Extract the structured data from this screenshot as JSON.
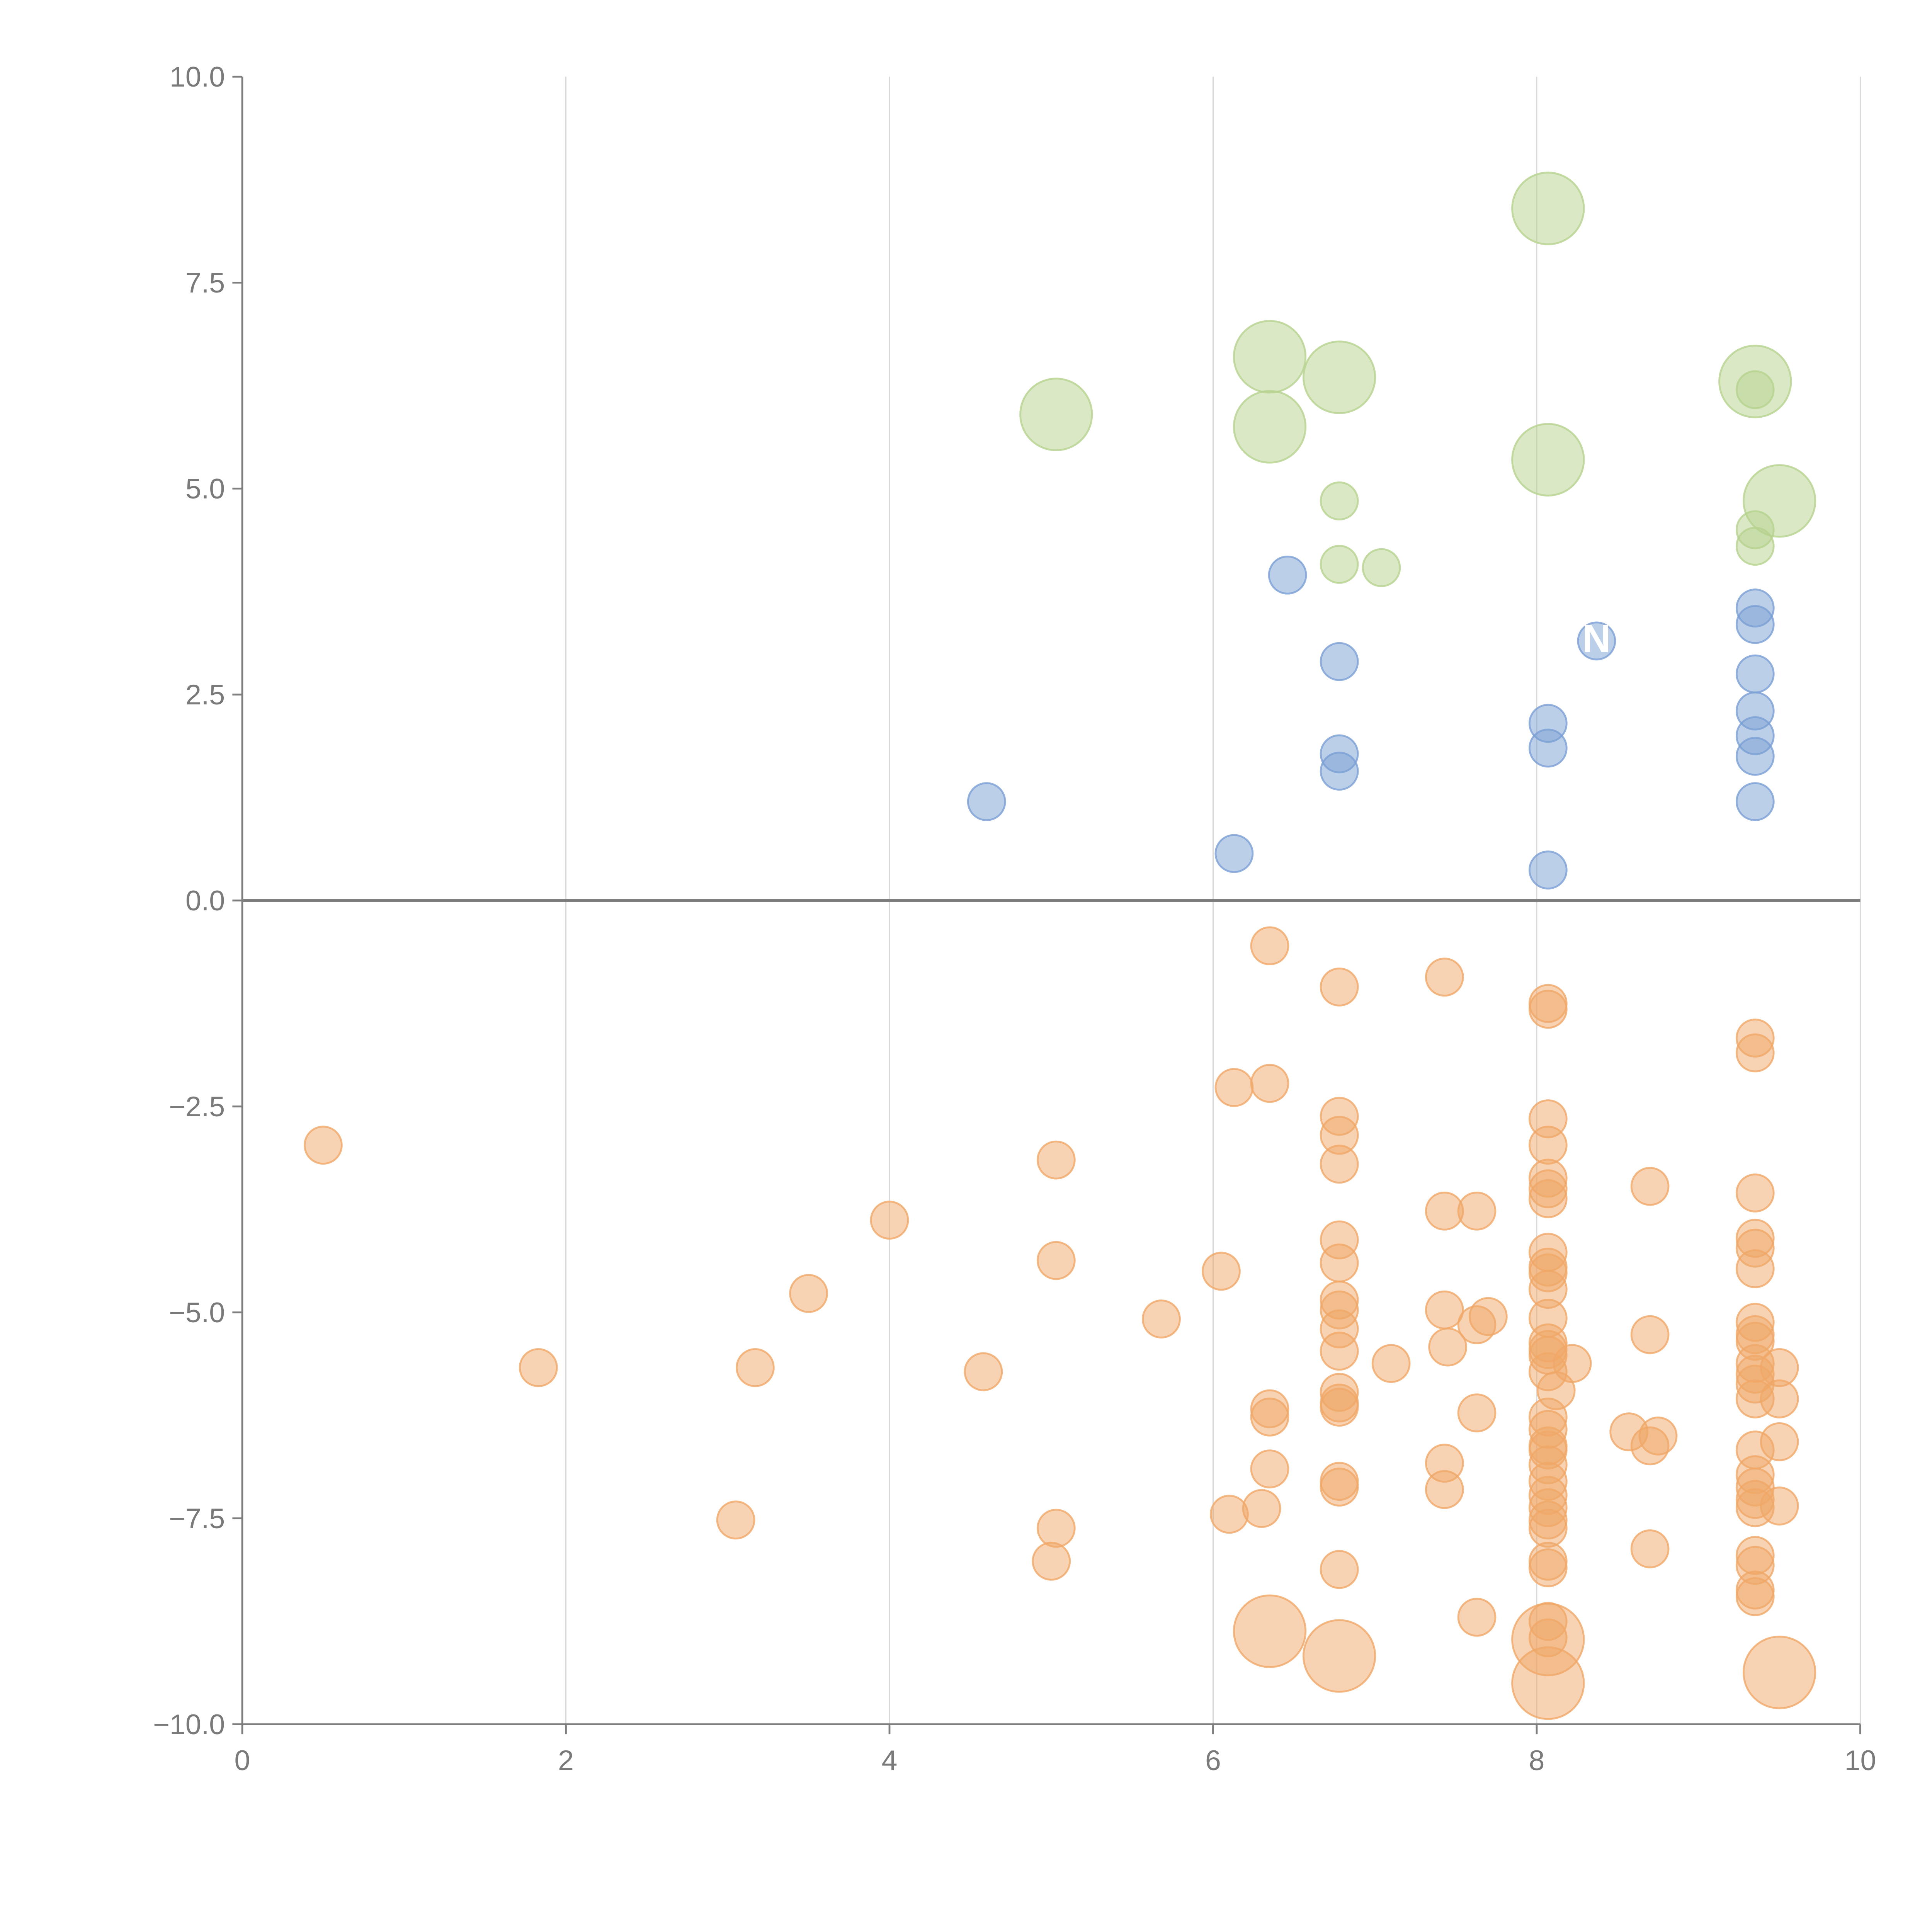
{
  "colors": {
    "background": "#ffffff",
    "grid": "#d9d9d9",
    "axis": "#7f7f7f",
    "zero_line": "#7f7f7f",
    "tick_text": "#7a7a7a",
    "negative": "#F0A868",
    "positive": "#7A9FD4",
    "high": "#B6D28E"
  },
  "chart_data": {
    "type": "scatter",
    "title": "",
    "xlabel": "",
    "ylabel": "",
    "xlim": [
      0,
      10
    ],
    "ylim": [
      -10,
      10
    ],
    "grid": "vertical",
    "xticks": [
      0,
      2,
      4,
      6,
      8,
      10
    ],
    "xtick_labels": [
      "0",
      "2",
      "4",
      "6",
      "8",
      "10"
    ],
    "yticks": [
      10,
      7.5,
      5,
      2.5,
      0,
      -2.5,
      -5,
      -7.5,
      -10
    ],
    "ytick_labels": [
      "10.0",
      "7.5",
      "5.0",
      "2.5",
      "0.0",
      "−2.5",
      "−5.0",
      "−7.5",
      "−10.0"
    ],
    "zero_line": true,
    "series": [
      {
        "name": "green",
        "color": "#B6D28E",
        "points": [
          {
            "x": 8.07,
            "y": 8.4,
            "size": "large"
          },
          {
            "x": 6.35,
            "y": 6.6,
            "size": "large"
          },
          {
            "x": 6.78,
            "y": 6.35,
            "size": "large"
          },
          {
            "x": 9.35,
            "y": 6.3,
            "size": "large"
          },
          {
            "x": 5.03,
            "y": 5.9,
            "size": "large"
          },
          {
            "x": 6.35,
            "y": 5.75,
            "size": "large"
          },
          {
            "x": 8.07,
            "y": 5.35,
            "size": "large"
          },
          {
            "x": 9.5,
            "y": 4.85,
            "size": "large"
          },
          {
            "x": 9.35,
            "y": 6.2,
            "size": "small"
          },
          {
            "x": 6.78,
            "y": 4.85,
            "size": "small"
          },
          {
            "x": 9.35,
            "y": 4.5,
            "size": "small"
          },
          {
            "x": 9.35,
            "y": 4.3,
            "size": "small"
          },
          {
            "x": 6.78,
            "y": 4.08,
            "size": "small"
          },
          {
            "x": 7.04,
            "y": 4.04,
            "size": "small"
          }
        ]
      },
      {
        "name": "blue",
        "color": "#7A9FD4",
        "points": [
          {
            "x": 6.46,
            "y": 3.95
          },
          {
            "x": 9.35,
            "y": 3.55
          },
          {
            "x": 9.35,
            "y": 3.35
          },
          {
            "x": 8.37,
            "y": 3.15
          },
          {
            "x": 6.78,
            "y": 2.9
          },
          {
            "x": 9.35,
            "y": 2.75
          },
          {
            "x": 9.35,
            "y": 2.3
          },
          {
            "x": 8.07,
            "y": 2.15
          },
          {
            "x": 9.35,
            "y": 2.0
          },
          {
            "x": 8.07,
            "y": 1.85
          },
          {
            "x": 6.78,
            "y": 1.78
          },
          {
            "x": 9.35,
            "y": 1.75
          },
          {
            "x": 6.78,
            "y": 1.57
          },
          {
            "x": 4.6,
            "y": 1.2
          },
          {
            "x": 9.35,
            "y": 1.2
          },
          {
            "x": 6.13,
            "y": 0.57
          },
          {
            "x": 8.07,
            "y": 0.37
          }
        ]
      },
      {
        "name": "orange",
        "color": "#F0A868",
        "points": [
          {
            "x": 0.5,
            "y": -2.97
          },
          {
            "x": 1.83,
            "y": -5.67
          },
          {
            "x": 3.05,
            "y": -7.52
          },
          {
            "x": 3.17,
            "y": -5.67
          },
          {
            "x": 3.5,
            "y": -4.77
          },
          {
            "x": 4.0,
            "y": -3.88
          },
          {
            "x": 4.58,
            "y": -5.72
          },
          {
            "x": 5.0,
            "y": -8.02
          },
          {
            "x": 5.03,
            "y": -3.15
          },
          {
            "x": 5.03,
            "y": -4.37
          },
          {
            "x": 5.03,
            "y": -7.62
          },
          {
            "x": 5.68,
            "y": -5.08
          },
          {
            "x": 6.05,
            "y": -4.5
          },
          {
            "x": 6.1,
            "y": -7.45
          },
          {
            "x": 6.13,
            "y": -2.27
          },
          {
            "x": 6.3,
            "y": -7.38
          },
          {
            "x": 6.35,
            "y": -0.55
          },
          {
            "x": 6.35,
            "y": -2.22
          },
          {
            "x": 6.35,
            "y": -6.17
          },
          {
            "x": 6.35,
            "y": -6.27
          },
          {
            "x": 6.35,
            "y": -6.9
          },
          {
            "x": 6.78,
            "y": -1.05
          },
          {
            "x": 6.78,
            "y": -2.62
          },
          {
            "x": 6.78,
            "y": -2.85
          },
          {
            "x": 6.78,
            "y": -3.2
          },
          {
            "x": 6.78,
            "y": -4.12
          },
          {
            "x": 6.78,
            "y": -4.4
          },
          {
            "x": 6.78,
            "y": -4.85
          },
          {
            "x": 6.78,
            "y": -4.97
          },
          {
            "x": 6.78,
            "y": -5.2
          },
          {
            "x": 6.78,
            "y": -5.47
          },
          {
            "x": 6.78,
            "y": -5.97
          },
          {
            "x": 6.78,
            "y": -6.1
          },
          {
            "x": 6.78,
            "y": -6.15
          },
          {
            "x": 6.78,
            "y": -7.05
          },
          {
            "x": 6.78,
            "y": -7.12
          },
          {
            "x": 6.78,
            "y": -8.12
          },
          {
            "x": 7.1,
            "y": -5.62
          },
          {
            "x": 7.43,
            "y": -0.93
          },
          {
            "x": 7.43,
            "y": -3.77
          },
          {
            "x": 7.43,
            "y": -4.97
          },
          {
            "x": 7.45,
            "y": -5.42
          },
          {
            "x": 7.43,
            "y": -6.83
          },
          {
            "x": 7.43,
            "y": -7.15
          },
          {
            "x": 7.63,
            "y": -3.77
          },
          {
            "x": 7.63,
            "y": -5.15
          },
          {
            "x": 7.63,
            "y": -6.22
          },
          {
            "x": 7.63,
            "y": -8.7
          },
          {
            "x": 7.7,
            "y": -5.05
          },
          {
            "x": 8.07,
            "y": -1.25
          },
          {
            "x": 8.07,
            "y": -1.32
          },
          {
            "x": 8.07,
            "y": -2.65
          },
          {
            "x": 8.07,
            "y": -2.97
          },
          {
            "x": 8.07,
            "y": -3.37
          },
          {
            "x": 8.07,
            "y": -3.5
          },
          {
            "x": 8.07,
            "y": -3.62
          },
          {
            "x": 8.07,
            "y": -4.27
          },
          {
            "x": 8.07,
            "y": -4.45
          },
          {
            "x": 8.07,
            "y": -4.52
          },
          {
            "x": 8.07,
            "y": -4.72
          },
          {
            "x": 8.07,
            "y": -5.07
          },
          {
            "x": 8.07,
            "y": -5.37
          },
          {
            "x": 8.07,
            "y": -5.45
          },
          {
            "x": 8.07,
            "y": -5.52
          },
          {
            "x": 8.07,
            "y": -5.72
          },
          {
            "x": 8.07,
            "y": -6.27
          },
          {
            "x": 8.07,
            "y": -6.42
          },
          {
            "x": 8.07,
            "y": -6.62
          },
          {
            "x": 8.07,
            "y": -6.67
          },
          {
            "x": 8.07,
            "y": -6.85
          },
          {
            "x": 8.07,
            "y": -7.05
          },
          {
            "x": 8.07,
            "y": -7.22
          },
          {
            "x": 8.07,
            "y": -7.37
          },
          {
            "x": 8.07,
            "y": -7.52
          },
          {
            "x": 8.07,
            "y": -7.62
          },
          {
            "x": 8.07,
            "y": -8.02
          },
          {
            "x": 8.07,
            "y": -8.1
          },
          {
            "x": 8.07,
            "y": -8.75
          },
          {
            "x": 8.07,
            "y": -8.95
          },
          {
            "x": 8.12,
            "y": -5.95
          },
          {
            "x": 8.22,
            "y": -5.62
          },
          {
            "x": 8.57,
            "y": -6.45
          },
          {
            "x": 8.7,
            "y": -3.47
          },
          {
            "x": 8.7,
            "y": -5.27
          },
          {
            "x": 8.7,
            "y": -6.62
          },
          {
            "x": 8.75,
            "y": -6.5
          },
          {
            "x": 8.7,
            "y": -7.87
          },
          {
            "x": 9.35,
            "y": -1.67
          },
          {
            "x": 9.35,
            "y": -1.85
          },
          {
            "x": 9.35,
            "y": -3.55
          },
          {
            "x": 9.35,
            "y": -4.1
          },
          {
            "x": 9.35,
            "y": -4.22
          },
          {
            "x": 9.35,
            "y": -4.47
          },
          {
            "x": 9.35,
            "y": -5.12
          },
          {
            "x": 9.35,
            "y": -5.27
          },
          {
            "x": 9.35,
            "y": -5.35
          },
          {
            "x": 9.35,
            "y": -5.62
          },
          {
            "x": 9.35,
            "y": -5.75
          },
          {
            "x": 9.35,
            "y": -5.87
          },
          {
            "x": 9.35,
            "y": -6.05
          },
          {
            "x": 9.35,
            "y": -6.67
          },
          {
            "x": 9.35,
            "y": -6.97
          },
          {
            "x": 9.35,
            "y": -7.12
          },
          {
            "x": 9.35,
            "y": -7.27
          },
          {
            "x": 9.35,
            "y": -7.37
          },
          {
            "x": 9.35,
            "y": -7.95
          },
          {
            "x": 9.35,
            "y": -8.07
          },
          {
            "x": 9.35,
            "y": -8.37
          },
          {
            "x": 9.35,
            "y": -8.45
          },
          {
            "x": 9.5,
            "y": -5.67
          },
          {
            "x": 9.5,
            "y": -6.05
          },
          {
            "x": 9.5,
            "y": -6.57
          },
          {
            "x": 9.5,
            "y": -7.35
          },
          {
            "x": 6.35,
            "y": -8.87,
            "size": "large"
          },
          {
            "x": 6.78,
            "y": -9.17,
            "size": "large"
          },
          {
            "x": 8.07,
            "y": -8.97,
            "size": "large"
          },
          {
            "x": 8.07,
            "y": -9.5,
            "size": "large"
          },
          {
            "x": 9.5,
            "y": -9.37,
            "size": "large"
          }
        ]
      }
    ],
    "annotations": [
      {
        "text": "N",
        "x": 8.37,
        "y": 3.18
      }
    ]
  }
}
